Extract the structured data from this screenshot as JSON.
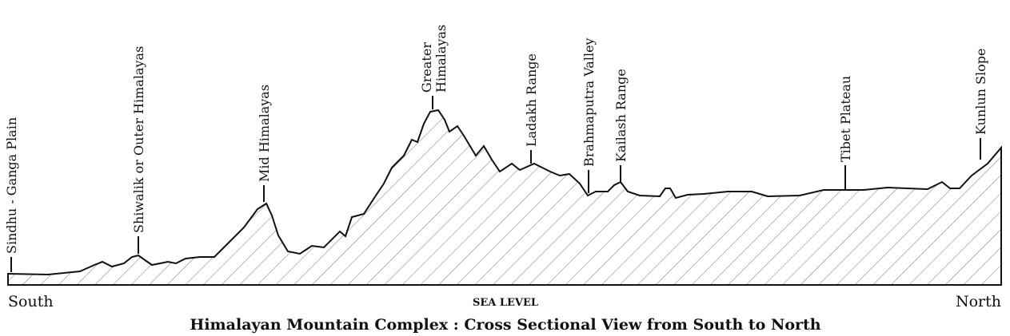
{
  "labels": [
    "Sindhu - Ganga Plain",
    "Shiwalik or Outer Himalayas",
    "Mid Himalayas",
    "Greater",
    "Himalayas",
    "Ladakh Range",
    "Brahmaputra Valley",
    "Kailash Range",
    "Tibet Plateau",
    "Kunlun Slope"
  ],
  "axis": {
    "left": "South",
    "center": "SEA LEVEL",
    "right": "North"
  },
  "title": "Himalayan Mountain Complex : Cross Sectional View from South to North"
}
